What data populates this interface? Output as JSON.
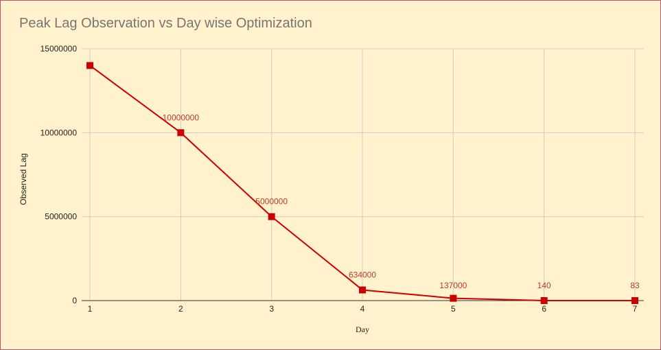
{
  "chart_data": {
    "type": "line",
    "title": "Peak Lag Observation vs Day wise Optimization",
    "xlabel": "Day",
    "ylabel": "Observed Lag",
    "x": [
      1,
      2,
      3,
      4,
      5,
      6,
      7
    ],
    "x_tick_labels": [
      "1",
      "2",
      "3",
      "4",
      "5",
      "6",
      "7"
    ],
    "y_tick_labels": [
      "0",
      "5000000",
      "10000000",
      "15000000"
    ],
    "y_ticks": [
      0,
      5000000,
      10000000,
      15000000
    ],
    "ylim": [
      0,
      15000000
    ],
    "series": [
      {
        "values": [
          14000000,
          10000000,
          5000000,
          634000,
          137000,
          140,
          83
        ],
        "point_labels": [
          "",
          "10000000",
          "5000000",
          "634000",
          "137000",
          "140",
          "83"
        ]
      }
    ],
    "grid": true,
    "legend": "none",
    "colors": {
      "background": "#fff2cc",
      "series": "#cc0000",
      "label": "#c0392b",
      "grid": "#cccccc",
      "title": "#757575"
    }
  }
}
